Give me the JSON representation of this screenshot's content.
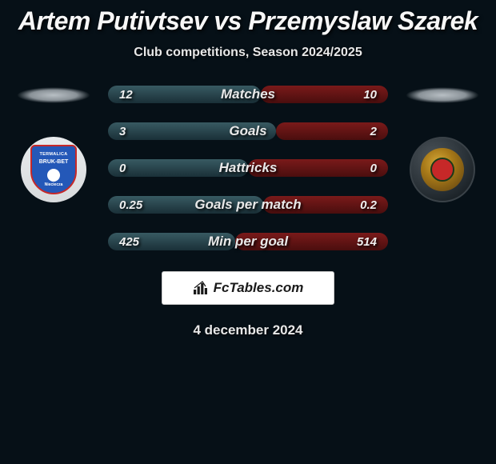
{
  "title": "Artem Putivtsev vs Przemyslaw Szarek",
  "subtitle": "Club competitions, Season 2024/2025",
  "date": "4 december 2024",
  "brand": "FcTables.com",
  "colors": {
    "bar_left": "linear-gradient(180deg, #385a62 0%, #1a3038 100%)",
    "bar_right": "linear-gradient(180deg, #7a1a1a 0%, #4a0e0e 100%)",
    "background": "#061017"
  },
  "player_left": {
    "club_logo_text_top": "TERMALICA",
    "club_logo_text_mid": "BRUK-BET",
    "club_logo_text_bot": "Nieciecza"
  },
  "stats": [
    {
      "label": "Matches",
      "left_value": "12",
      "right_value": "10",
      "left_width_pct": 54.5,
      "right_width_pct": 45.5
    },
    {
      "label": "Goals",
      "left_value": "3",
      "right_value": "2",
      "left_width_pct": 60,
      "right_width_pct": 40
    },
    {
      "label": "Hattricks",
      "left_value": "0",
      "right_value": "0",
      "left_width_pct": 50,
      "right_width_pct": 50
    },
    {
      "label": "Goals per match",
      "left_value": "0.25",
      "right_value": "0.2",
      "left_width_pct": 55.5,
      "right_width_pct": 44.5
    },
    {
      "label": "Min per goal",
      "left_value": "425",
      "right_value": "514",
      "left_width_pct": 45.3,
      "right_width_pct": 54.7
    }
  ]
}
